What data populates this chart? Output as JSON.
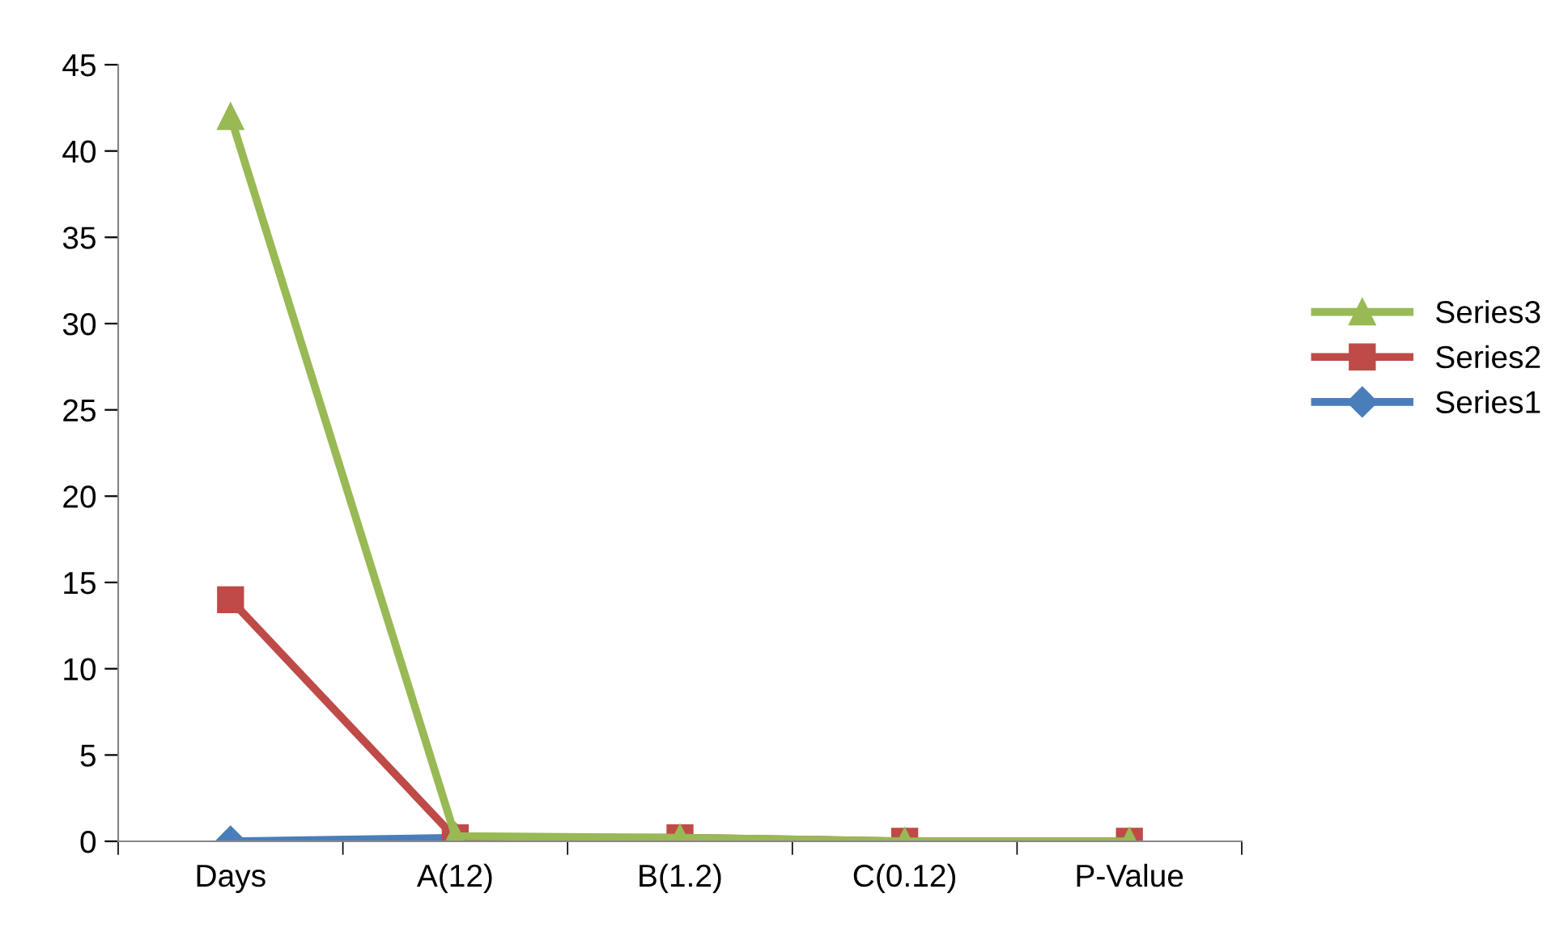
{
  "chart_data": {
    "type": "line",
    "categories": [
      "Days",
      "A(12)",
      "B(1.2)",
      "C(0.12)",
      "P-Value"
    ],
    "series": [
      {
        "name": "Series1",
        "color": "#4a7ebb",
        "marker": "diamond",
        "values": [
          0,
          0.2,
          null,
          null,
          null
        ]
      },
      {
        "name": "Series2",
        "color": "#be4b48",
        "marker": "square",
        "values": [
          14,
          0.2,
          0.2,
          0,
          0
        ]
      },
      {
        "name": "Series3",
        "color": "#98b954",
        "marker": "triangle",
        "values": [
          42,
          0.3,
          0.2,
          0,
          0
        ]
      }
    ],
    "ylim": [
      0,
      45
    ],
    "yticks": [
      0,
      5,
      10,
      15,
      20,
      25,
      30,
      35,
      40,
      45
    ],
    "grid": false,
    "legend": "right",
    "line_style": "solid"
  }
}
